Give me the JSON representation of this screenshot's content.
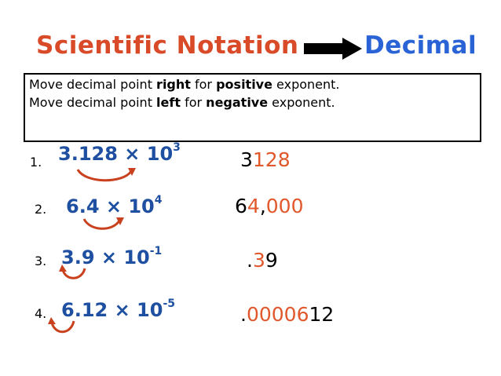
{
  "title": {
    "left": "Scientific Notation",
    "right": "Decimal"
  },
  "rules": {
    "line1": {
      "pre": "Move decimal point ",
      "bold1": "right",
      "mid": " for ",
      "bold2": "positive",
      "post": " exponent."
    },
    "line2": {
      "pre": "Move decimal point ",
      "bold1": "left",
      "mid": " for ",
      "bold2": "negative",
      "post": " exponent."
    }
  },
  "problems": [
    {
      "number": "1.",
      "coefficient": "3.128",
      "times": " × ",
      "base": "10",
      "exponent": "3",
      "answer_black_pre": "3",
      "answer_orange": "128",
      "answer_black_post": "",
      "answer_orange_post": ""
    },
    {
      "number": "2.",
      "coefficient": "6.4",
      "times": " × ",
      "base": "10",
      "exponent": "4",
      "answer_black_pre": "6",
      "answer_orange": "4",
      "answer_black_post": ",",
      "answer_orange_post": "000"
    },
    {
      "number": "3.",
      "coefficient": "3.9",
      "times": " × ",
      "base": "10",
      "exponent": "-1",
      "answer_black_pre": ".",
      "answer_orange": "3",
      "answer_black_post": "9",
      "answer_orange_post": ""
    },
    {
      "number": "4.",
      "coefficient": "6.12",
      "times": " × ",
      "base": "10",
      "exponent": "-5",
      "answer_black_pre": ".",
      "answer_orange": "00006",
      "answer_black_post": "12",
      "answer_orange_post": ""
    }
  ],
  "colors": {
    "title_left": "#d84a28",
    "title_right": "#2a63d6",
    "expression": "#1e4fa0",
    "highlight": "#e0582b",
    "hop_arrow": "#c9411e"
  }
}
